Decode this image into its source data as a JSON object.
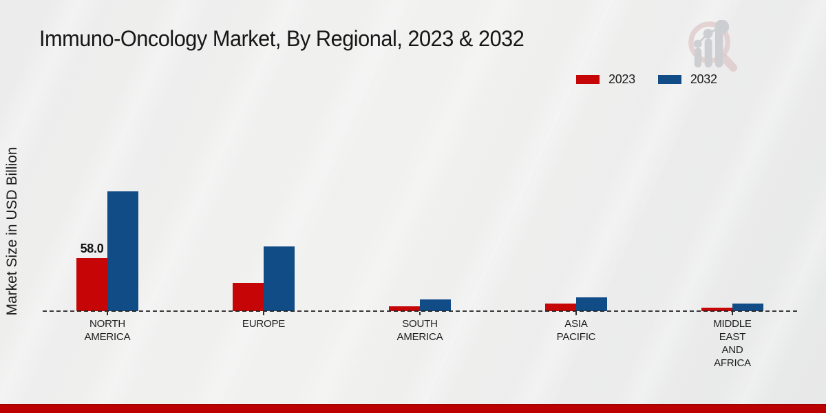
{
  "page": {
    "title": "Immuno-Oncology Market, By Regional, 2023 & 2032",
    "y_axis_label": "Market Size in USD Billion"
  },
  "legend": {
    "items": [
      {
        "label": "2023",
        "color": "#c60606"
      },
      {
        "label": "2032",
        "color": "#114c86"
      }
    ]
  },
  "colors": {
    "series_2023": "#c60606",
    "series_2032": "#114c86",
    "footer_stripe": "#bb0100",
    "background": "#ebebeb",
    "baseline": "#232323"
  },
  "logo": {
    "name": "magnifier-bar-chart-logo"
  },
  "chart_data": {
    "type": "bar",
    "title": "Immuno-Oncology Market, By Regional, 2023 & 2032",
    "xlabel": "",
    "ylabel": "Market Size in USD Billion",
    "categories": [
      "North America",
      "Europe",
      "South America",
      "Asia Pacific",
      "Middle East and Africa"
    ],
    "category_display_lines": [
      [
        "NORTH",
        "AMERICA"
      ],
      [
        "EUROPE"
      ],
      [
        "SOUTH",
        "AMERICA"
      ],
      [
        "ASIA",
        "PACIFIC"
      ],
      [
        "MIDDLE",
        "EAST",
        "AND",
        "AFRICA"
      ]
    ],
    "series": [
      {
        "name": "2023",
        "color": "#c60606",
        "values": [
          58.0,
          31.0,
          5.3,
          8.3,
          4.0
        ],
        "value_labels": [
          "58.0",
          null,
          null,
          null,
          null
        ]
      },
      {
        "name": "2032",
        "color": "#114c86",
        "values": [
          131.0,
          70.8,
          12.8,
          15.0,
          8.3
        ],
        "value_labels": [
          null,
          null,
          null,
          null,
          null
        ]
      }
    ],
    "ylim": [
      0,
      140
    ],
    "grid": false,
    "axis_line": "dashed",
    "legend_position": "top-right"
  }
}
